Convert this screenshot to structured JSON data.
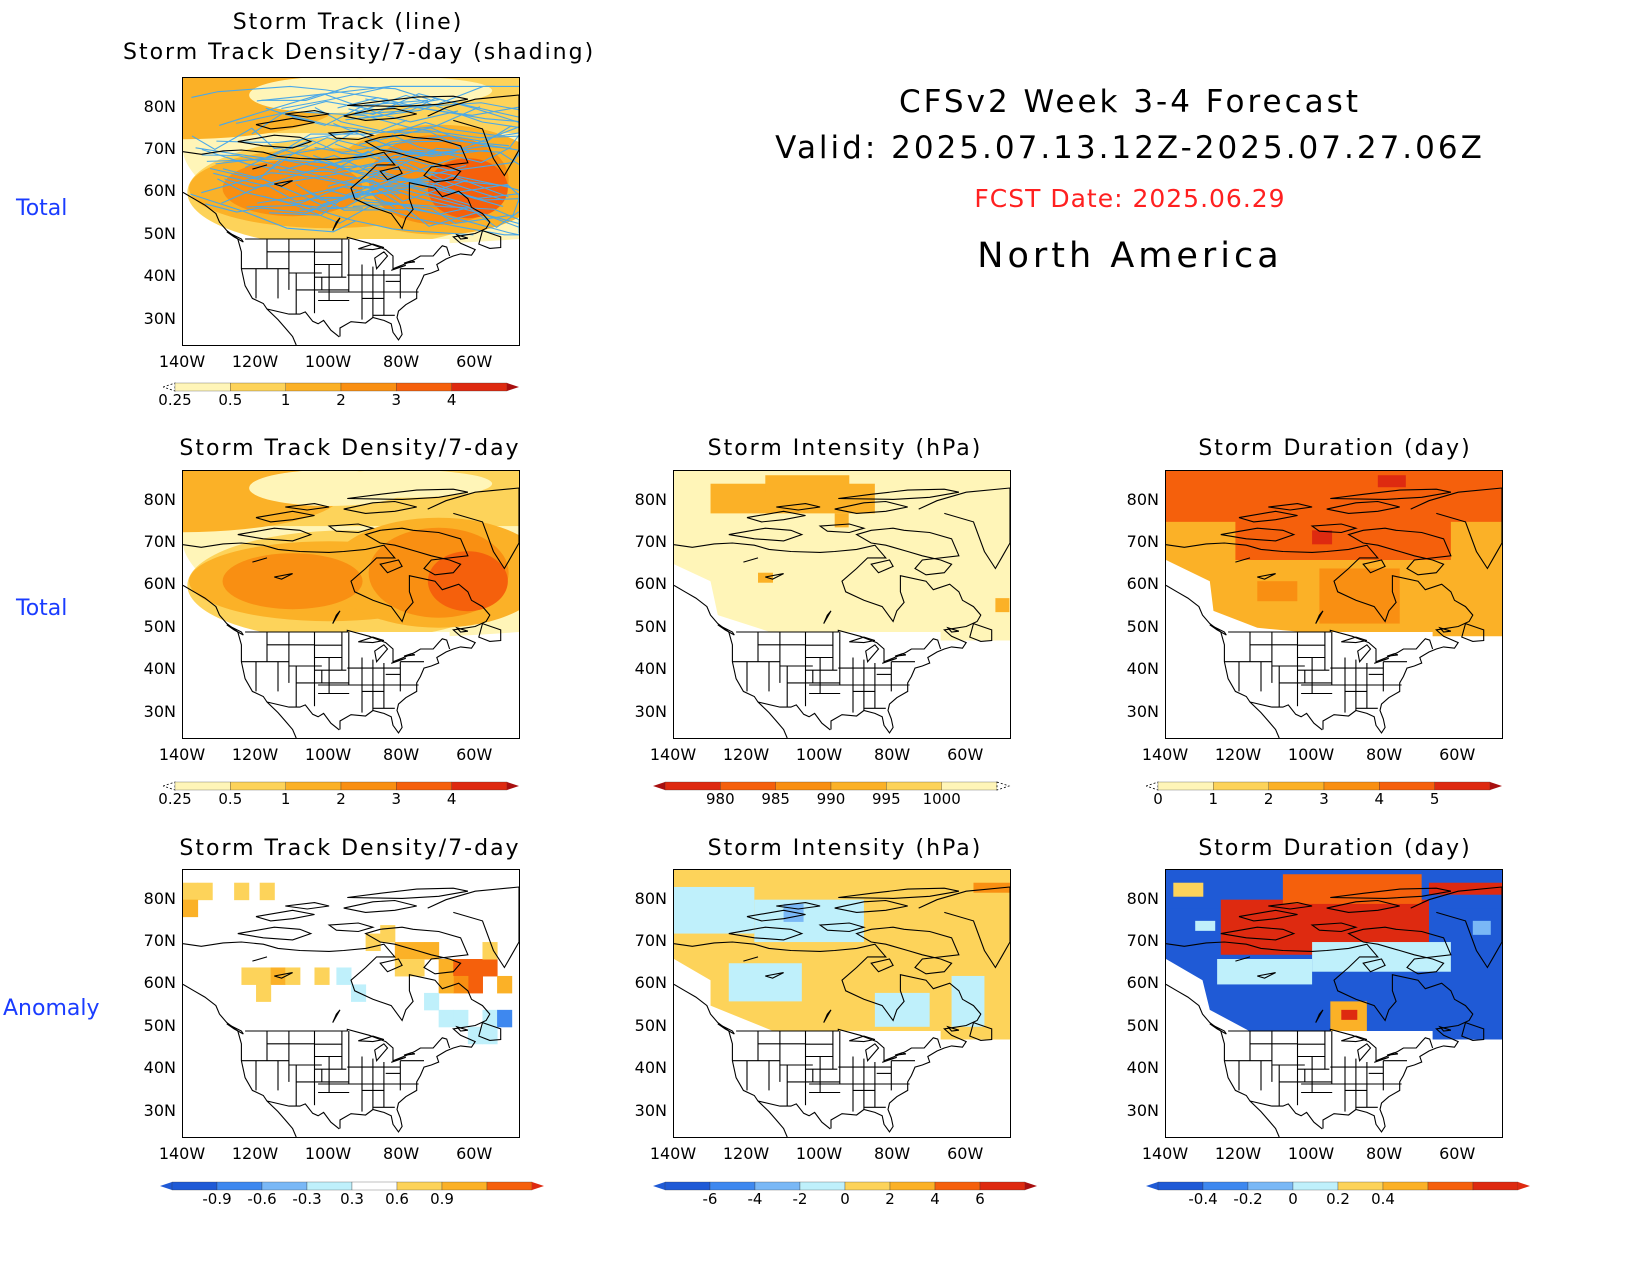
{
  "header": {
    "line1": "CFSv2 Week 3-4 Forecast",
    "line2": "Valid: 2025.07.13.12Z-2025.07.27.06Z",
    "fcst_date": "FCST Date: 2025.06.29",
    "region": "North America",
    "fcst_color": "#ff2020"
  },
  "row_labels": [
    "Total",
    "Total",
    "Anomaly"
  ],
  "panels": {
    "p1": {
      "title1": "Storm Track (line)",
      "title2": "Storm Track Density/7-day (shading)"
    },
    "p2": {
      "title": "Storm Track Density/7-day"
    },
    "p3": {
      "title": "Storm Intensity (hPa)"
    },
    "p4": {
      "title": "Storm Duration (day)"
    },
    "p5": {
      "title": "Storm Track Density/7-day"
    },
    "p6": {
      "title": "Storm Intensity (hPa)"
    },
    "p7": {
      "title": "Storm Duration (day)"
    }
  },
  "axes": {
    "lat_labels": [
      "80N",
      "70N",
      "60N",
      "50N",
      "40N",
      "30N"
    ],
    "lon_labels": [
      "140W",
      "120W",
      "100W",
      "80W",
      "60W"
    ]
  },
  "colorbars": {
    "density_total": {
      "labels": [
        "0.25",
        "0.5",
        "1",
        "2",
        "3",
        "4"
      ]
    },
    "intensity_total": {
      "labels": [
        "980",
        "985",
        "990",
        "995",
        "1000"
      ]
    },
    "duration_total": {
      "labels": [
        "0",
        "1",
        "2",
        "3",
        "4",
        "5"
      ]
    },
    "density_anom": {
      "labels": [
        "-0.9",
        "-0.6",
        "-0.3",
        "0.3",
        "0.6",
        "0.9"
      ]
    },
    "intensity_anom": {
      "labels": [
        "-6",
        "-4",
        "-2",
        "0",
        "2",
        "4",
        "6"
      ]
    },
    "duration_anom": {
      "labels": [
        "-0.4",
        "-0.2",
        "0",
        "0.2",
        "0.4"
      ]
    }
  },
  "colors": {
    "warm": [
      "#fff5b8",
      "#fdd35a",
      "#fbb127",
      "#f98f12",
      "#f5600c",
      "#de2a10",
      "#a80f0f"
    ],
    "cool": [
      "#1f5ad6",
      "#3e88ef",
      "#7ab8f6",
      "#bff0fb"
    ],
    "track_line": "#4aa8e8"
  }
}
